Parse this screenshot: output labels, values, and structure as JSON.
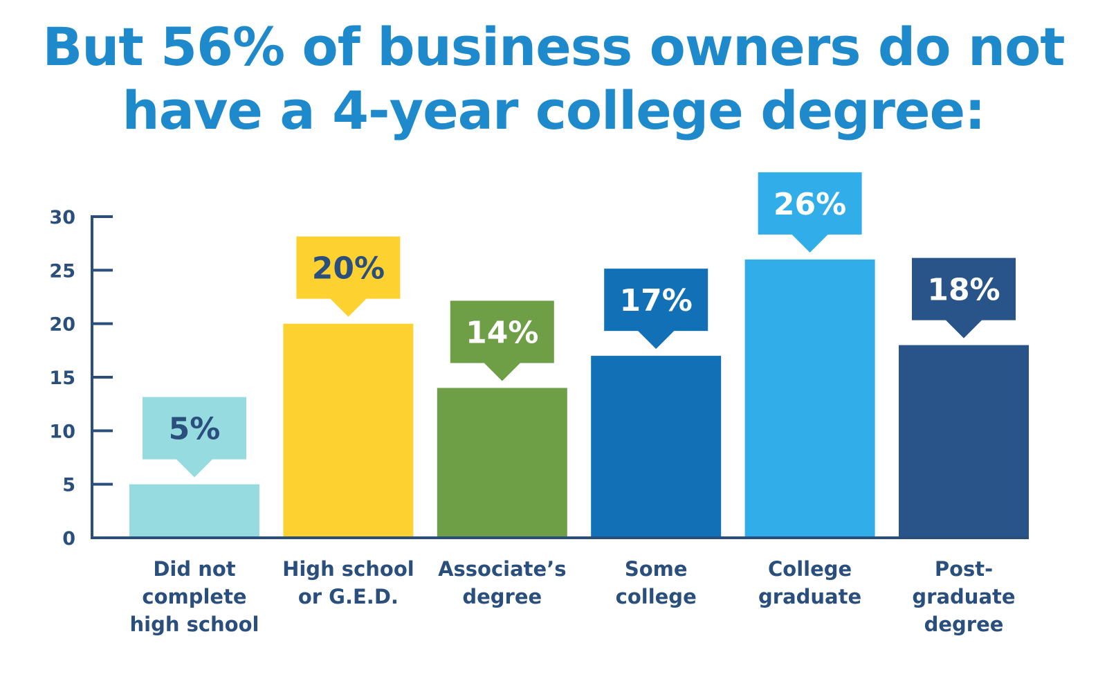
{
  "chart_data": {
    "type": "bar",
    "title_lines": [
      "But 56% of business owners do not",
      "have a 4-year college degree:"
    ],
    "categories": [
      [
        "Did not",
        "complete",
        "high school"
      ],
      [
        "High school",
        "or G.E.D."
      ],
      [
        "Associate’s",
        "degree"
      ],
      [
        "Some",
        "college"
      ],
      [
        "College",
        "graduate"
      ],
      [
        "Post-",
        "graduate",
        "degree"
      ]
    ],
    "values": [
      5,
      20,
      14,
      17,
      26,
      18
    ],
    "data_labels": [
      "5%",
      "20%",
      "14%",
      "17%",
      "26%",
      "18%"
    ],
    "bar_colors": [
      "#96dbe0",
      "#fdd130",
      "#6e9e45",
      "#1170b6",
      "#31aeea",
      "#29548a"
    ],
    "label_text_colors": [
      "#2a4f7d",
      "#2a4f7d",
      "#ffffff",
      "#ffffff",
      "#ffffff",
      "#ffffff"
    ],
    "yticks": [
      "0",
      "5",
      "10",
      "15",
      "20",
      "25",
      "30"
    ],
    "ytick_values": [
      0,
      5,
      10,
      15,
      20,
      25,
      30
    ],
    "ylim": [
      0,
      30
    ],
    "axis_color": "#2a4f7d",
    "title_color": "#1e8acb",
    "grid": false,
    "legend": "none"
  }
}
